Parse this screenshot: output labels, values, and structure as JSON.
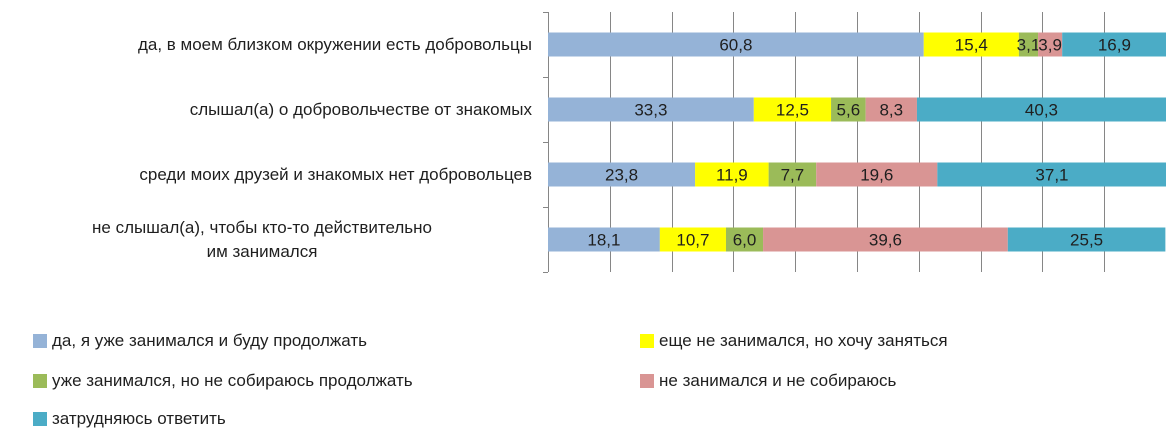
{
  "chart_data": {
    "type": "bar",
    "orientation": "horizontal",
    "stacked": true,
    "categories": [
      "да, в моем близком окружении есть добровольцы",
      "слышал(а) о добровольчестве от знакомых",
      "среди моих друзей и знакомых нет добровольцев",
      "не слышал(а), чтобы кто-то действительно им занимался"
    ],
    "series": [
      {
        "name": "да, я уже занимался и буду продолжать",
        "color": "#95b3d7",
        "values": [
          60.8,
          33.3,
          23.8,
          18.1
        ],
        "labels": [
          "60,8",
          "33,3",
          "23,8",
          "18,1"
        ]
      },
      {
        "name": "еще не занимался, но хочу заняться",
        "color": "#ffff00",
        "values": [
          15.4,
          12.5,
          11.9,
          10.7
        ],
        "labels": [
          "15,4",
          "12,5",
          "11,9",
          "10,7"
        ]
      },
      {
        "name": "уже занимался, но не собираюсь продолжать",
        "color": "#9bbb59",
        "values": [
          3.1,
          5.6,
          7.7,
          6.0
        ],
        "labels": [
          "3,1",
          "5,6",
          "7,7",
          "6,0"
        ]
      },
      {
        "name": "не занимался и не собираюсь",
        "color": "#d99594",
        "values": [
          3.9,
          8.3,
          19.6,
          39.6
        ],
        "labels": [
          "3,9",
          "8,3",
          "19,6",
          "39,6"
        ]
      },
      {
        "name": "затрудняюсь ответить",
        "color": "#4bacc6",
        "values": [
          16.9,
          40.3,
          37.1,
          25.5
        ],
        "labels": [
          "16,9",
          "40,3",
          "37,1",
          "25,5"
        ]
      }
    ],
    "xlim": [
      0,
      100
    ],
    "grid": true,
    "legend_position": "bottom"
  }
}
